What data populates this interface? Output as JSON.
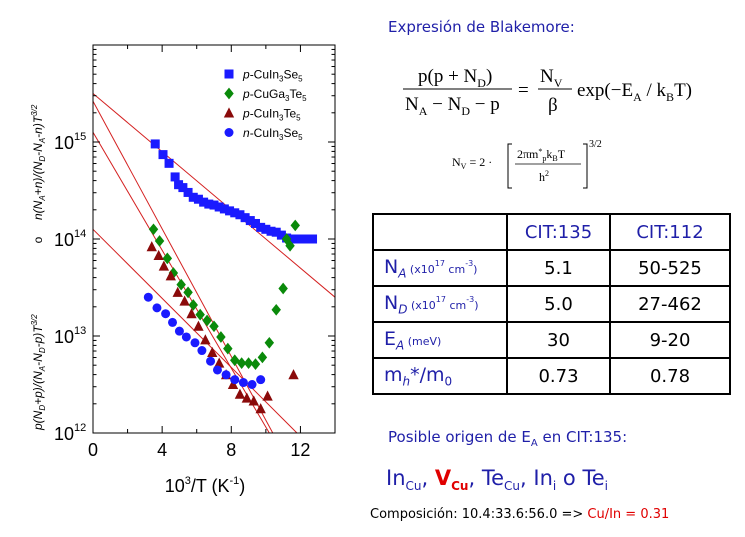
{
  "chart_data": {
    "type": "scatter",
    "xlabel_parts": {
      "base": "10",
      "sup": "3",
      "rest": "/T  (K",
      "sup2": "-1",
      "end": ")"
    },
    "ylabel_upper": "n(N_A+n)/(N_D-N_A-n)T^3/2",
    "ylabel_mid": "o",
    "ylabel_lower": "p(N_D+p)/(N_A-N_D-p)T^3/2",
    "xlim": [
      0,
      14
    ],
    "ylim_log10": [
      12,
      16
    ],
    "xticks": [
      0,
      4,
      8,
      12
    ],
    "ytick_labels": [
      {
        "exp": 12,
        "base": "10",
        "sup": "12"
      },
      {
        "exp": 13,
        "base": "10",
        "sup": "13"
      },
      {
        "exp": 14,
        "base": "10",
        "sup": "14"
      },
      {
        "exp": 15,
        "base": "10",
        "sup": "15"
      }
    ],
    "series": [
      {
        "name": "p-CuIn3Se5",
        "prefix": "p",
        "formula": "-CuIn",
        "sub": "3",
        "formula2": "Se",
        "sub2": "5",
        "marker": "square",
        "color": "#1a1aff",
        "points": [
          [
            3.6,
            14.98
          ],
          [
            4.05,
            14.87
          ],
          [
            4.4,
            14.78
          ],
          [
            4.75,
            14.64
          ],
          [
            4.95,
            14.56
          ],
          [
            5.2,
            14.53
          ],
          [
            5.5,
            14.48
          ],
          [
            5.8,
            14.43
          ],
          [
            6.1,
            14.41
          ],
          [
            6.4,
            14.38
          ],
          [
            6.7,
            14.36
          ],
          [
            7.0,
            14.35
          ],
          [
            7.3,
            14.33
          ],
          [
            7.6,
            14.31
          ],
          [
            7.9,
            14.29
          ],
          [
            8.2,
            14.27
          ],
          [
            8.5,
            14.25
          ],
          [
            8.8,
            14.22
          ],
          [
            9.1,
            14.19
          ],
          [
            9.4,
            14.16
          ],
          [
            9.7,
            14.12
          ],
          [
            10.0,
            14.1
          ],
          [
            10.3,
            14.08
          ],
          [
            10.6,
            14.07
          ],
          [
            10.9,
            14.04
          ],
          [
            11.2,
            14.01
          ],
          [
            11.5,
            14.0
          ],
          [
            11.8,
            14.0
          ],
          [
            12.1,
            14.0
          ],
          [
            12.4,
            14.0
          ],
          [
            12.7,
            14.0
          ]
        ]
      },
      {
        "name": "p-CuGa3Te5",
        "prefix": "p",
        "formula": "-CuGa",
        "sub": "3",
        "formula2": "Te",
        "sub2": "5",
        "marker": "diamond",
        "color": "#0a8a0a",
        "points": [
          [
            3.5,
            14.1
          ],
          [
            3.85,
            13.98
          ],
          [
            4.3,
            13.8
          ],
          [
            4.65,
            13.65
          ],
          [
            5.1,
            13.53
          ],
          [
            5.5,
            13.45
          ],
          [
            5.8,
            13.32
          ],
          [
            6.2,
            13.22
          ],
          [
            6.6,
            13.16
          ],
          [
            7.0,
            13.1
          ],
          [
            7.4,
            12.99
          ],
          [
            7.8,
            12.87
          ],
          [
            8.2,
            12.75
          ],
          [
            8.6,
            12.72
          ],
          [
            9.0,
            12.72
          ],
          [
            9.4,
            12.71
          ],
          [
            9.8,
            12.78
          ],
          [
            10.2,
            12.93
          ],
          [
            10.6,
            13.27
          ],
          [
            11.0,
            13.49
          ],
          [
            11.4,
            13.93
          ],
          [
            11.7,
            14.14
          ],
          [
            11.2,
            14.0
          ]
        ]
      },
      {
        "name": "p-CuIn3Te5",
        "prefix": "p",
        "formula": "-CuIn",
        "sub": "3",
        "formula2": "Te",
        "sub2": "5",
        "marker": "triangle",
        "color": "#8a0a0a",
        "points": [
          [
            3.4,
            13.92
          ],
          [
            3.8,
            13.83
          ],
          [
            4.1,
            13.72
          ],
          [
            4.5,
            13.62
          ],
          [
            4.9,
            13.45
          ],
          [
            5.3,
            13.36
          ],
          [
            5.7,
            13.23
          ],
          [
            6.1,
            13.1
          ],
          [
            6.5,
            12.96
          ],
          [
            6.9,
            12.83
          ],
          [
            7.3,
            12.72
          ],
          [
            7.7,
            12.6
          ],
          [
            8.1,
            12.5
          ],
          [
            8.5,
            12.4
          ],
          [
            8.9,
            12.36
          ],
          [
            9.3,
            12.33
          ],
          [
            9.7,
            12.25
          ],
          [
            10.1,
            12.38
          ],
          [
            11.6,
            12.6
          ]
        ]
      },
      {
        "name": "n-CuIn3Se5",
        "prefix": "n",
        "formula": "-CuIn",
        "sub": "3",
        "formula2": "Se",
        "sub2": "5",
        "marker": "circle",
        "color": "#1a1aff",
        "points": [
          [
            3.2,
            13.4
          ],
          [
            3.7,
            13.29
          ],
          [
            4.2,
            13.23
          ],
          [
            4.6,
            13.14
          ],
          [
            5.0,
            13.05
          ],
          [
            5.4,
            12.99
          ],
          [
            5.9,
            12.93
          ],
          [
            6.3,
            12.85
          ],
          [
            6.8,
            12.74
          ],
          [
            7.2,
            12.65
          ],
          [
            7.7,
            12.6
          ],
          [
            8.2,
            12.55
          ],
          [
            8.7,
            12.52
          ],
          [
            9.2,
            12.5
          ],
          [
            9.7,
            12.55
          ]
        ]
      }
    ],
    "fit_lines": [
      {
        "x": [
          0,
          14
        ],
        "y": [
          15.5,
          13.4
        ]
      },
      {
        "x": [
          0,
          10.4
        ],
        "y": [
          15.42,
          12.0
        ]
      },
      {
        "x": [
          0,
          10.2
        ],
        "y": [
          15.1,
          12.0
        ]
      },
      {
        "x": [
          0,
          11.8
        ],
        "y": [
          14.1,
          12.0
        ]
      }
    ],
    "fit_line_color": "#d42020"
  },
  "equations": {
    "title": "Expresión de Blakemore:",
    "main_lhs_num": "p(p + N",
    "main_lhs_num_sub": "D",
    "main_lhs_den": "N",
    "main_lhs_den_sub1": "A",
    "main_lhs_den_mid": " − N",
    "main_lhs_den_sub2": "D",
    "main_lhs_den_end": " − p",
    "main_rhs_num": "N",
    "main_rhs_num_sub": "V",
    "main_rhs_den": "β",
    "main_rhs_exp": "exp(−E",
    "main_rhs_exp_sub": "A",
    "main_rhs_exp_mid": " / k",
    "main_rhs_exp_sub2": "B",
    "main_rhs_exp_end": "T)",
    "nv_lhs": "N",
    "nv_lhs_sub": "V",
    "nv_eq": " = 2 ·",
    "nv_num": "2πm",
    "nv_num_sub": "p",
    "nv_num_sup": "*",
    "nv_num_end": "k",
    "nv_num_end_sub": "B",
    "nv_num_T": "T",
    "nv_den": "h",
    "nv_den_sup": "2",
    "nv_pow": "3/2"
  },
  "table": {
    "headers": [
      "",
      "CIT:135",
      "CIT:112"
    ],
    "rows": [
      {
        "sym": "N",
        "sub": "A",
        "unit_pre": " (x10",
        "unit_sup": "17",
        "unit_post": " cm",
        "unit_sup2": "-3",
        "unit_end": ")",
        "v1": "5.1",
        "v2": "50-525"
      },
      {
        "sym": "N",
        "sub": "D",
        "unit_pre": " (x10",
        "unit_sup": "17",
        "unit_post": " cm",
        "unit_sup2": "-3",
        "unit_end": ")",
        "v1": "5.0",
        "v2": "27-462"
      },
      {
        "sym": "E",
        "sub": "A",
        "unit_pre": " (meV)",
        "unit_sup": "",
        "unit_post": "",
        "unit_sup2": "",
        "unit_end": "",
        "v1": "30",
        "v2": "9-20"
      },
      {
        "sym": "m",
        "sub": "h",
        "unit_pre": "*/m",
        "unit_sup": "",
        "unit_post": "",
        "unit_sup2": "",
        "unit_end": "",
        "sub_end": "0",
        "v1": "0.73",
        "v2": "0.78"
      }
    ]
  },
  "origin": {
    "text": "Posible origen de E",
    "sub": "A",
    "end": " en CIT:135:"
  },
  "defects": [
    {
      "base": "In",
      "sub": "Cu",
      "highlight": false
    },
    {
      "base": "V",
      "sub": "Cu",
      "highlight": true
    },
    {
      "base": "Te",
      "sub": "Cu",
      "highlight": false
    },
    {
      "base": "In",
      "sub": "i",
      "highlight": false
    },
    {
      "base": "Te",
      "sub": "i",
      "highlight": false
    }
  ],
  "defect_sep": ", ",
  "defect_last_sep": " o ",
  "composition": {
    "label": "Composición: 10.4:33.6:56.0 => ",
    "ratio": "Cu/In = 0.31"
  }
}
